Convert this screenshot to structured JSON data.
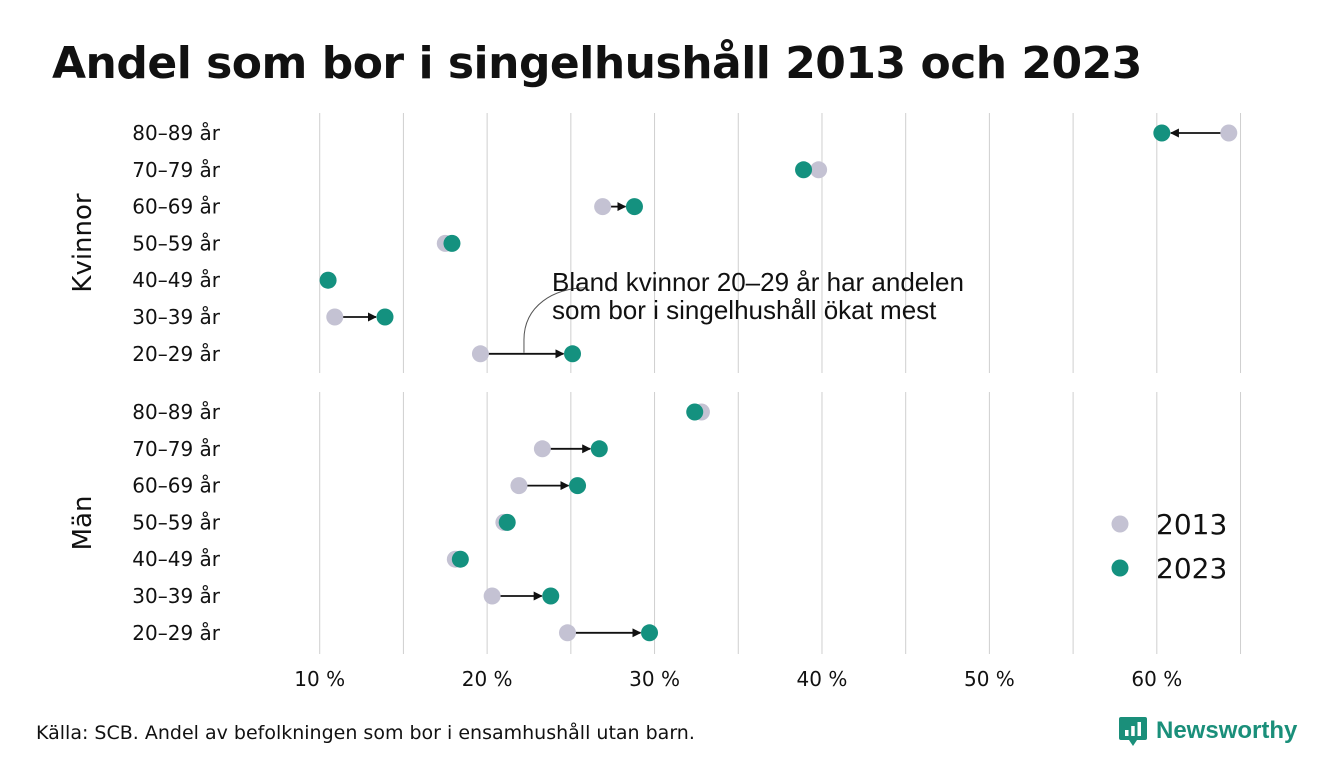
{
  "title": "Andel som bor i singelhushåll 2013 och 2023",
  "source": "Källa: SCB. Andel av befolkningen som bor i ensamhushåll utan barn.",
  "brand": {
    "name": "Newsworthy",
    "color": "#1a8f7a",
    "icon": "bar-chart-speech-icon"
  },
  "chart_data": {
    "type": "scatter",
    "variant": "dumbbell",
    "x_range": [
      5,
      67
    ],
    "x_ticks": [
      10,
      20,
      30,
      40,
      50,
      60
    ],
    "x_tick_labels": [
      "10 %",
      "20 %",
      "30 %",
      "40 %",
      "50 %",
      "60 %"
    ],
    "grid": true,
    "legend_position": "right",
    "series": [
      {
        "name": "2013",
        "color": "#c4c2d3"
      },
      {
        "name": "2023",
        "color": "#14917f"
      }
    ],
    "panels": [
      {
        "label": "Kvinnor",
        "rows": [
          {
            "category": "80–89 år",
            "v2013": 64.3,
            "v2023": 60.3
          },
          {
            "category": "70–79 år",
            "v2013": 39.8,
            "v2023": 38.9
          },
          {
            "category": "60–69 år",
            "v2013": 26.9,
            "v2023": 28.8
          },
          {
            "category": "50–59 år",
            "v2013": 17.5,
            "v2023": 17.9
          },
          {
            "category": "40–49 år",
            "v2013": 10.5,
            "v2023": 10.5
          },
          {
            "category": "30–39 år",
            "v2013": 10.9,
            "v2023": 13.9
          },
          {
            "category": "20–29 år",
            "v2013": 19.6,
            "v2023": 25.1
          }
        ]
      },
      {
        "label": "Män",
        "rows": [
          {
            "category": "80–89 år",
            "v2013": 32.8,
            "v2023": 32.4
          },
          {
            "category": "70–79 år",
            "v2013": 23.3,
            "v2023": 26.7
          },
          {
            "category": "60–69 år",
            "v2013": 21.9,
            "v2023": 25.4
          },
          {
            "category": "50–59 år",
            "v2013": 21.0,
            "v2023": 21.2
          },
          {
            "category": "40–49 år",
            "v2013": 18.1,
            "v2023": 18.4
          },
          {
            "category": "30–39 år",
            "v2013": 20.3,
            "v2023": 23.8
          },
          {
            "category": "20–29 år",
            "v2013": 24.8,
            "v2023": 29.7
          }
        ]
      }
    ],
    "annotation": {
      "text_lines": [
        "Bland kvinnor 20–29 år har andelen",
        "som bor i singelhushåll ökat mest"
      ],
      "panel": 0,
      "row": 6
    }
  }
}
